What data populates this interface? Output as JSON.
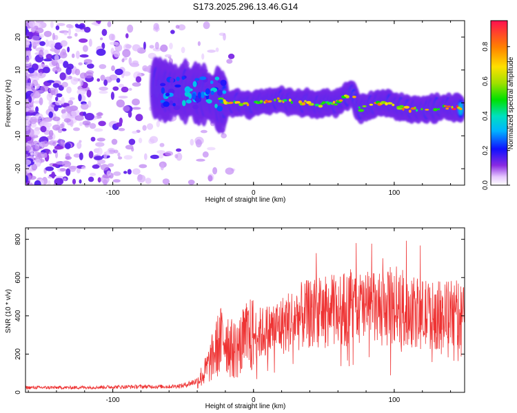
{
  "figure_title": "S173.2025.296.13.46.G14",
  "chart_data": [
    {
      "type": "heatmap",
      "xlabel": "Height of straight line (km)",
      "ylabel": "Frequency (Hz)",
      "xlim": [
        -162,
        150
      ],
      "ylim": [
        -25,
        25
      ],
      "x_ticks": [
        -100,
        0,
        100
      ],
      "y_ticks": [
        -20,
        -10,
        0,
        10,
        20
      ],
      "colorbar": {
        "label": "Normalized spectral amplitude",
        "range": [
          0,
          0.95
        ],
        "ticks": [
          0.0,
          0.2,
          0.4,
          0.6,
          0.8
        ]
      },
      "ridge": {
        "description_points_x": [
          -60,
          -40,
          -25,
          -15,
          0,
          15,
          30,
          45,
          60,
          70,
          75,
          90,
          100,
          110,
          120,
          130,
          145
        ],
        "frequency_hz": [
          4,
          3,
          1,
          0,
          -0.5,
          1,
          0.5,
          -0.5,
          0,
          3,
          -2,
          0,
          -1,
          -2,
          -2,
          -1.5,
          -1.5
        ],
        "peak_amplitude": [
          0.3,
          0.45,
          0.6,
          0.75,
          0.7,
          0.9,
          0.75,
          0.7,
          0.75,
          0.8,
          0.7,
          0.8,
          0.85,
          0.8,
          0.8,
          0.85,
          0.9
        ]
      }
    },
    {
      "type": "line",
      "xlabel": "Height of straight line (km)",
      "ylabel": "SNR (10 * v/v)",
      "xlim": [
        -162,
        150
      ],
      "ylim": [
        0,
        860
      ],
      "x_ticks": [
        -100,
        0,
        100
      ],
      "y_ticks": [
        0,
        200,
        400,
        600,
        800
      ],
      "series": [
        {
          "name": "SNR",
          "color": "#ee3333",
          "envelope_x": [
            -162,
            -130,
            -100,
            -80,
            -60,
            -50,
            -40,
            -35,
            -30,
            -25,
            -20,
            -15,
            -10,
            -5,
            0,
            10,
            20,
            30,
            40,
            50,
            60,
            70,
            80,
            90,
            100,
            110,
            120,
            130,
            140,
            150
          ],
          "envelope_y": [
            25,
            25,
            28,
            30,
            30,
            35,
            60,
            100,
            170,
            250,
            300,
            220,
            240,
            280,
            300,
            320,
            350,
            390,
            410,
            420,
            430,
            440,
            440,
            430,
            440,
            420,
            410,
            400,
            410,
            400
          ]
        }
      ]
    }
  ]
}
